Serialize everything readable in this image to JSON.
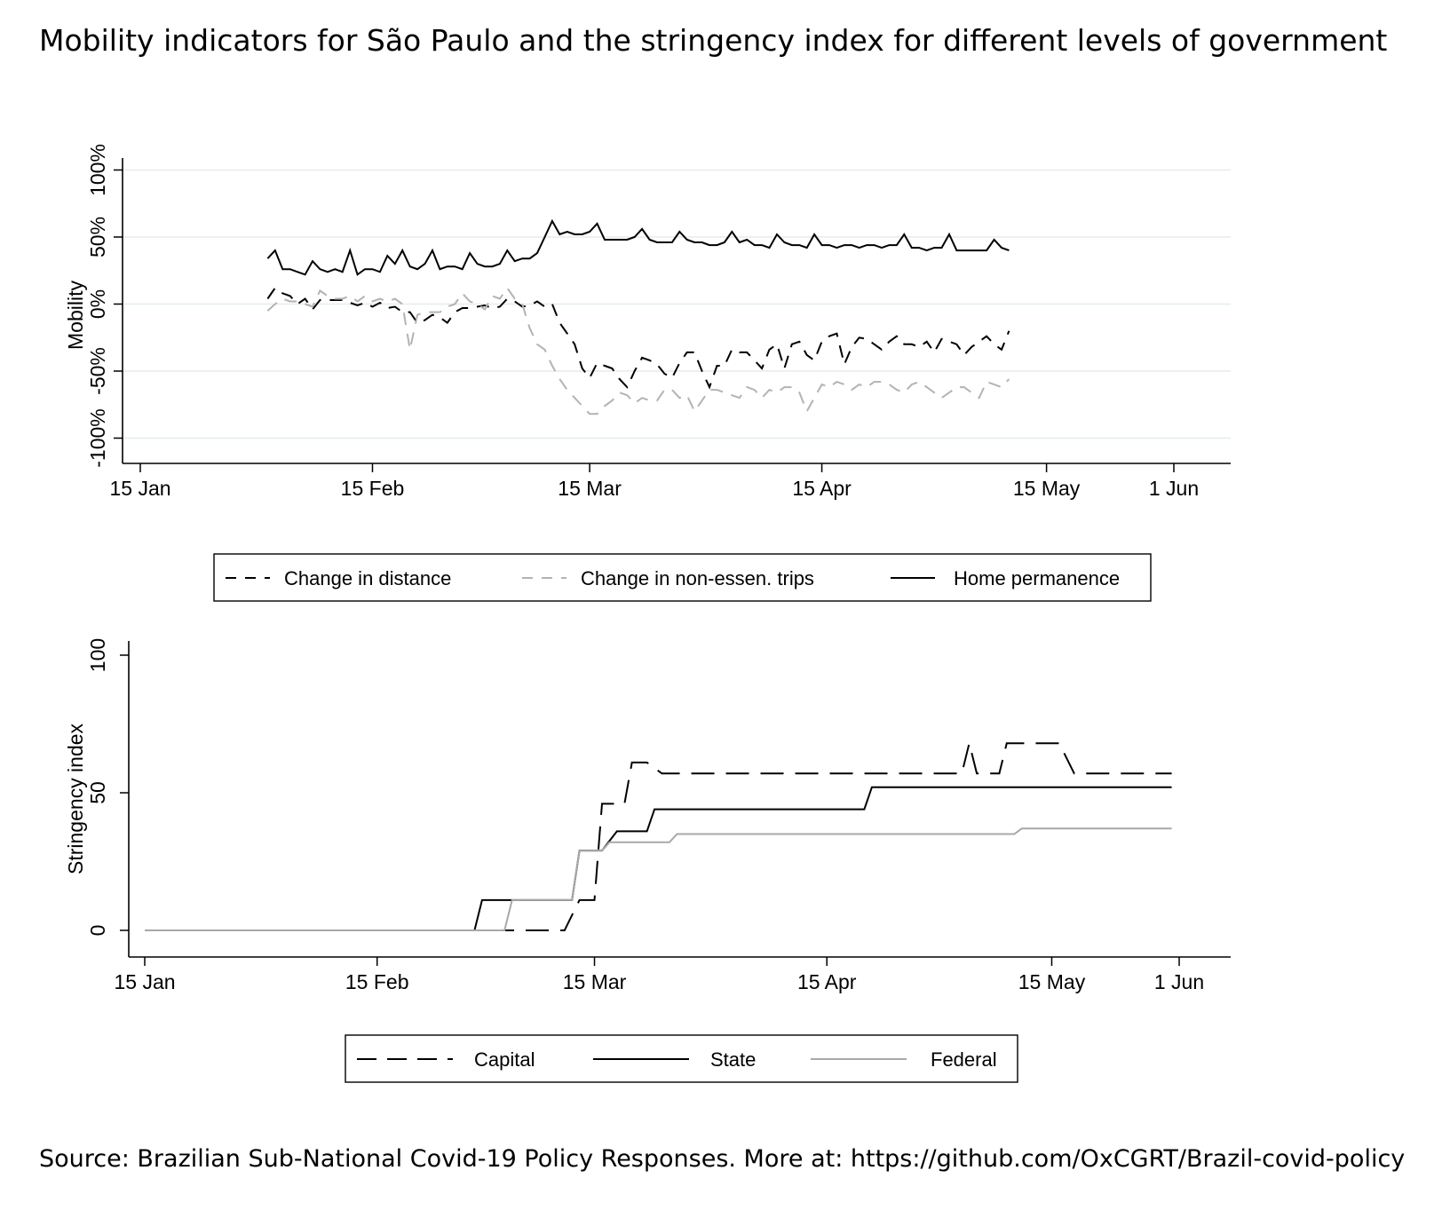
{
  "figure": {
    "title": "Mobility indicators for São Paulo and the stringency index for different levels of government",
    "source": "Source: Brazilian Sub-National Covid-19 Policy Responses. More at: https://github.com/OxCGRT/Brazil-covid-policy"
  },
  "chart_data": [
    {
      "type": "line",
      "ylabel": "Mobility",
      "xlabel": "",
      "x_ticks": [
        "15 Jan",
        "15 Feb",
        "15 Mar",
        "15 Apr",
        "15 May",
        "1 Jun"
      ],
      "x_tick_dates": [
        "2020-01-15",
        "2020-02-15",
        "2020-03-15",
        "2020-04-15",
        "2020-05-15",
        "2020-06-01"
      ],
      "y_ticks": [
        "-100%",
        "-50%",
        "0%",
        "50%",
        "100%"
      ],
      "y_tick_values": [
        -100,
        -50,
        0,
        50,
        100
      ],
      "ylim": [
        -110,
        110
      ],
      "xlim": [
        "2020-01-15",
        "2020-06-01"
      ],
      "grid": "horizontal",
      "legend_position": "bottom",
      "x_start": "2020-02-01",
      "x_step_days": 1,
      "series": [
        {
          "name": "Change in distance",
          "color": "#000000",
          "style": "dashed",
          "values": [
            4,
            12,
            8,
            6,
            0,
            4,
            -4,
            3,
            3,
            3,
            3,
            1,
            -1,
            1,
            -2,
            1,
            -3,
            -2,
            -6,
            -6,
            -14,
            -12,
            -8,
            -10,
            -14,
            -6,
            -3,
            -3,
            -2,
            -1,
            -3,
            -2,
            4,
            2,
            -2,
            -1,
            2,
            -2,
            0,
            -14,
            -22,
            -30,
            -48,
            -55,
            -44,
            -46,
            -48,
            -56,
            -62,
            -50,
            -40,
            -42,
            -45,
            -52,
            -55,
            -44,
            -36,
            -36,
            -50,
            -62,
            -46,
            -46,
            -34,
            -36,
            -36,
            -42,
            -48,
            -34,
            -30,
            -48,
            -30,
            -28,
            -38,
            -42,
            -28,
            -24,
            -22,
            -45,
            -32,
            -25,
            -26,
            -30,
            -34,
            -28,
            -24,
            -30,
            -30,
            -32,
            -28,
            -36,
            -26,
            -28,
            -30,
            -38,
            -32,
            -28,
            -24,
            -30,
            -34,
            -20
          ],
          "values_note": "daily percent change"
        },
        {
          "name": "Change in non-essen. trips",
          "color": "#b3b3b3",
          "style": "dashed",
          "values": [
            -5,
            0,
            4,
            2,
            2,
            0,
            -2,
            10,
            6,
            4,
            4,
            6,
            2,
            6,
            2,
            4,
            2,
            4,
            0,
            -34,
            -8,
            -6,
            -6,
            -6,
            -2,
            0,
            8,
            2,
            0,
            -4,
            6,
            4,
            12,
            4,
            0,
            -18,
            -30,
            -34,
            -46,
            -56,
            -64,
            -70,
            -76,
            -82,
            -82,
            -76,
            -72,
            -66,
            -68,
            -74,
            -70,
            -72,
            -72,
            -64,
            -64,
            -70,
            -68,
            -80,
            -72,
            -64,
            -64,
            -66,
            -68,
            -70,
            -62,
            -64,
            -70,
            -64,
            -66,
            -62,
            -62,
            -66,
            -80,
            -70,
            -60,
            -62,
            -58,
            -60,
            -64,
            -60,
            -62,
            -58,
            -58,
            -60,
            -64,
            -66,
            -60,
            -58,
            -62,
            -66,
            -70,
            -66,
            -62,
            -62,
            -66,
            -70,
            -58,
            -60,
            -62,
            -56
          ],
          "values_note": "daily percent change"
        },
        {
          "name": "Home permanence",
          "color": "#000000",
          "style": "solid",
          "values": [
            34,
            40,
            26,
            26,
            24,
            22,
            32,
            26,
            24,
            26,
            24,
            40,
            22,
            26,
            26,
            24,
            36,
            30,
            40,
            28,
            26,
            30,
            40,
            26,
            28,
            28,
            26,
            38,
            30,
            28,
            28,
            30,
            40,
            32,
            34,
            34,
            38,
            50,
            62,
            52,
            54,
            52,
            52,
            54,
            60,
            48,
            48,
            48,
            48,
            50,
            56,
            48,
            46,
            46,
            46,
            54,
            48,
            46,
            46,
            44,
            44,
            46,
            54,
            46,
            48,
            44,
            44,
            42,
            52,
            46,
            44,
            44,
            42,
            52,
            44,
            44,
            42,
            44,
            44,
            42,
            44,
            44,
            42,
            44,
            44,
            52,
            42,
            42,
            40,
            42,
            42,
            52,
            40,
            40,
            40,
            40,
            40,
            48,
            42,
            40
          ],
          "values_note": "daily percent"
        }
      ]
    },
    {
      "type": "line",
      "ylabel": "Stringency index",
      "xlabel": "",
      "x_ticks": [
        "15 Jan",
        "15 Feb",
        "15 Mar",
        "15 Apr",
        "15 May",
        "1 Jun"
      ],
      "x_tick_dates": [
        "2020-01-15",
        "2020-02-15",
        "2020-03-15",
        "2020-04-15",
        "2020-05-15",
        "2020-06-01"
      ],
      "y_ticks": [
        "0",
        "50",
        "100"
      ],
      "y_tick_values": [
        0,
        50,
        100
      ],
      "ylim": [
        -6,
        103
      ],
      "xlim": [
        "2020-01-15",
        "2020-06-01"
      ],
      "grid": "none",
      "legend_position": "bottom",
      "series": [
        {
          "name": "Capital",
          "color": "#000000",
          "style": "dashed",
          "points": [
            [
              "2020-01-15",
              0
            ],
            [
              "2020-03-11",
              0
            ],
            [
              "2020-03-13",
              11
            ],
            [
              "2020-03-15",
              11
            ],
            [
              "2020-03-16",
              46
            ],
            [
              "2020-03-19",
              46
            ],
            [
              "2020-03-20",
              61
            ],
            [
              "2020-03-22",
              61
            ],
            [
              "2020-03-24",
              57
            ],
            [
              "2020-05-03",
              57
            ],
            [
              "2020-05-04",
              68
            ],
            [
              "2020-05-05",
              57
            ],
            [
              "2020-05-08",
              57
            ],
            [
              "2020-05-09",
              68
            ],
            [
              "2020-05-16",
              68
            ],
            [
              "2020-05-18",
              57
            ],
            [
              "2020-05-31",
              57
            ]
          ]
        },
        {
          "name": "State",
          "color": "#000000",
          "style": "solid",
          "points": [
            [
              "2020-01-15",
              0
            ],
            [
              "2020-02-28",
              0
            ],
            [
              "2020-02-29",
              11
            ],
            [
              "2020-03-12",
              11
            ],
            [
              "2020-03-13",
              29
            ],
            [
              "2020-03-16",
              29
            ],
            [
              "2020-03-18",
              36
            ],
            [
              "2020-03-22",
              36
            ],
            [
              "2020-03-23",
              44
            ],
            [
              "2020-04-20",
              44
            ],
            [
              "2020-04-21",
              52
            ],
            [
              "2020-05-31",
              52
            ]
          ]
        },
        {
          "name": "Federal",
          "color": "#a8a8a8",
          "style": "solid",
          "points": [
            [
              "2020-01-15",
              0
            ],
            [
              "2020-03-03",
              0
            ],
            [
              "2020-03-04",
              11
            ],
            [
              "2020-03-12",
              11
            ],
            [
              "2020-03-13",
              29
            ],
            [
              "2020-03-16",
              29
            ],
            [
              "2020-03-17",
              32
            ],
            [
              "2020-03-25",
              32
            ],
            [
              "2020-03-26",
              35
            ],
            [
              "2020-05-10",
              35
            ],
            [
              "2020-05-11",
              37
            ],
            [
              "2020-05-31",
              37
            ]
          ]
        }
      ]
    }
  ]
}
